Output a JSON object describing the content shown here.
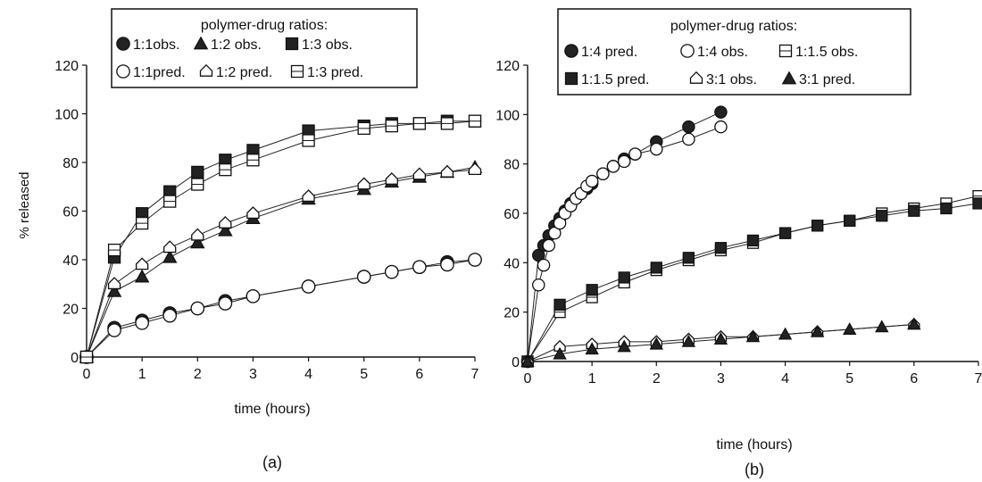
{
  "chart_data": [
    {
      "type": "line",
      "panel_label": "(a)",
      "xlabel": "time (hours)",
      "ylabel": "% released",
      "xlim": [
        0,
        7
      ],
      "ylim": [
        0,
        120
      ],
      "xticks": [
        0,
        1,
        2,
        3,
        4,
        5,
        6,
        7
      ],
      "yticks": [
        0,
        20,
        40,
        60,
        80,
        100,
        120
      ],
      "legend": {
        "title": "polymer-drug ratios:",
        "placement": "top-center"
      },
      "series": [
        {
          "name": "1:1obs.",
          "marker": "circle",
          "fill": "filled",
          "x": [
            0,
            0.5,
            1,
            1.5,
            2,
            2.5,
            3,
            4,
            5,
            5.5,
            6,
            6.5,
            7
          ],
          "y": [
            0,
            12,
            15,
            18,
            20,
            23,
            25,
            29,
            33,
            35,
            37,
            39,
            40
          ]
        },
        {
          "name": "1:1pred.",
          "marker": "circle",
          "fill": "open",
          "x": [
            0,
            0.5,
            1,
            1.5,
            2,
            2.5,
            3,
            4,
            5,
            5.5,
            6,
            6.5,
            7
          ],
          "y": [
            0,
            11,
            14,
            17,
            20,
            22,
            25,
            29,
            33,
            35,
            37,
            38,
            40
          ]
        },
        {
          "name": "1:2 obs.",
          "marker": "triangle",
          "fill": "filled",
          "x": [
            0,
            0.5,
            1,
            1.5,
            2,
            2.5,
            3,
            4,
            5,
            5.5,
            6,
            6.5,
            7
          ],
          "y": [
            0,
            27,
            33,
            41,
            47,
            52,
            57,
            65,
            69,
            72,
            74,
            76,
            78
          ]
        },
        {
          "name": "1:2 pred.",
          "marker": "house",
          "fill": "open",
          "x": [
            0,
            0.5,
            1,
            1.5,
            2,
            2.5,
            3,
            4,
            5,
            5.5,
            6,
            6.5,
            7
          ],
          "y": [
            0,
            30,
            38,
            45,
            50,
            55,
            59,
            66,
            71,
            73,
            75,
            76,
            77
          ]
        },
        {
          "name": "1:3 obs.",
          "marker": "square",
          "fill": "filled",
          "x": [
            0,
            0.5,
            1,
            1.5,
            2,
            2.5,
            3,
            4,
            5,
            5.5,
            6,
            6.5,
            7
          ],
          "y": [
            0,
            41,
            59,
            68,
            76,
            81,
            85,
            93,
            95,
            96,
            96,
            97,
            97
          ]
        },
        {
          "name": "1:3 pred.",
          "marker": "square",
          "fill": "open",
          "x": [
            0,
            0.5,
            1,
            1.5,
            2,
            2.5,
            3,
            4,
            5,
            5.5,
            6,
            6.5,
            7
          ],
          "y": [
            0,
            44,
            55,
            64,
            71,
            77,
            81,
            89,
            94,
            95,
            96,
            96,
            97
          ]
        }
      ]
    },
    {
      "type": "line",
      "panel_label": "(b)",
      "xlabel": "time (hours)",
      "ylabel": "",
      "xlim": [
        0,
        7
      ],
      "ylim": [
        0,
        120
      ],
      "xticks": [
        0,
        1,
        2,
        3,
        4,
        5,
        6,
        7
      ],
      "yticks": [
        0,
        20,
        40,
        60,
        80,
        100,
        120
      ],
      "legend": {
        "title": "polymer-drug ratios:",
        "placement": "top-center"
      },
      "series": [
        {
          "name": "1:4 pred.",
          "marker": "circle",
          "fill": "filled",
          "x": [
            0,
            0.17,
            0.25,
            0.33,
            0.42,
            0.5,
            0.58,
            0.67,
            0.75,
            0.83,
            0.92,
            1,
            1.17,
            1.33,
            1.5,
            1.67,
            2,
            2.5,
            3
          ],
          "y": [
            0,
            43,
            47,
            51,
            55,
            58,
            61,
            64,
            66,
            68,
            70,
            72,
            76,
            79,
            82,
            84,
            89,
            95,
            101
          ]
        },
        {
          "name": "1:4 obs.",
          "marker": "circle",
          "fill": "open",
          "x": [
            0,
            0.17,
            0.25,
            0.33,
            0.42,
            0.5,
            0.58,
            0.67,
            0.75,
            0.83,
            0.92,
            1,
            1.17,
            1.33,
            1.5,
            1.67,
            2,
            2.5,
            3
          ],
          "y": [
            0,
            31,
            39,
            47,
            52,
            56,
            60,
            63,
            66,
            68,
            71,
            73,
            76,
            79,
            81,
            84,
            86,
            90,
            95
          ]
        },
        {
          "name": "1:1.5 obs.",
          "marker": "square",
          "fill": "open",
          "x": [
            0,
            0.5,
            1,
            1.5,
            2,
            2.5,
            3,
            3.5,
            4,
            4.5,
            5,
            5.5,
            6,
            6.5,
            7
          ],
          "y": [
            0,
            20,
            26,
            32,
            37,
            41,
            45,
            48,
            52,
            55,
            57,
            60,
            62,
            64,
            67
          ]
        },
        {
          "name": "1:1.5 pred.",
          "marker": "square",
          "fill": "filled",
          "x": [
            0,
            0.5,
            1,
            1.5,
            2,
            2.5,
            3,
            3.5,
            4,
            4.5,
            5,
            5.5,
            6,
            6.5,
            7
          ],
          "y": [
            0,
            23,
            29,
            34,
            38,
            42,
            46,
            49,
            52,
            55,
            57,
            59,
            61,
            62,
            64
          ]
        },
        {
          "name": "3:1 obs.",
          "marker": "house",
          "fill": "open",
          "x": [
            0,
            0.5,
            1,
            1.5,
            2,
            2.5,
            3,
            3.5,
            4.5,
            6
          ],
          "y": [
            0,
            6,
            7,
            8,
            8,
            9,
            10,
            10,
            12,
            15
          ]
        },
        {
          "name": "3:1 pred.",
          "marker": "triangle",
          "fill": "filled",
          "x": [
            0,
            0.5,
            1,
            1.5,
            2,
            2.5,
            3,
            3.5,
            4,
            4.5,
            5,
            5.5,
            6
          ],
          "y": [
            0,
            3,
            5,
            6,
            7,
            8,
            9,
            10,
            11,
            12,
            13,
            14,
            15
          ]
        }
      ]
    }
  ]
}
